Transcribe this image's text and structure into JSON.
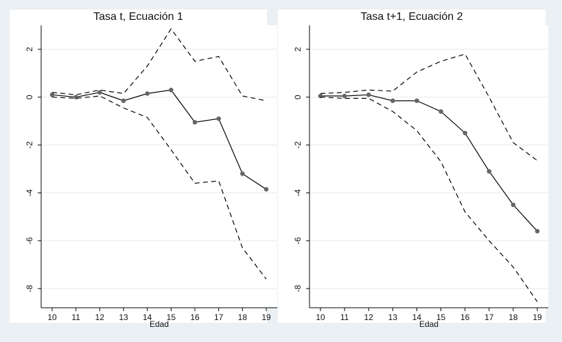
{
  "chart_data": [
    {
      "type": "line",
      "title": "Tasa t, Ecuación 1",
      "xlabel": "Edad",
      "ylabel": "",
      "x": [
        10,
        11,
        12,
        13,
        14,
        15,
        16,
        17,
        18,
        19
      ],
      "xticks": [
        "10",
        "11",
        "12",
        "13",
        "14",
        "15",
        "16",
        "17",
        "18",
        "19"
      ],
      "ylim": [
        -8.8,
        3.0
      ],
      "yticks": [
        2,
        0,
        -2,
        -4,
        -6,
        -8
      ],
      "ytick_labels": [
        "2",
        "0",
        "-2",
        "-4",
        "-6",
        "-8"
      ],
      "grid": true,
      "series": [
        {
          "style": "solid-markers",
          "color": "#000000",
          "marker_color": "#666666",
          "values": [
            0.1,
            0.0,
            0.2,
            -0.15,
            0.15,
            0.3,
            -1.05,
            -0.9,
            -3.2,
            -3.85
          ]
        },
        {
          "style": "dashed",
          "color": "#000000",
          "values": [
            0.2,
            0.1,
            0.3,
            0.15,
            1.3,
            2.85,
            1.5,
            1.7,
            0.05,
            -0.15
          ]
        },
        {
          "style": "dashed",
          "color": "#000000",
          "values": [
            0.0,
            -0.05,
            0.05,
            -0.45,
            -0.85,
            -2.2,
            -3.6,
            -3.5,
            -6.3,
            -7.6
          ]
        }
      ]
    },
    {
      "type": "line",
      "title": "Tasa t+1, Ecuación 2",
      "xlabel": "Edad",
      "ylabel": "",
      "x": [
        10,
        11,
        12,
        13,
        14,
        15,
        16,
        17,
        18,
        19
      ],
      "xticks": [
        "10",
        "11",
        "12",
        "13",
        "14",
        "15",
        "16",
        "17",
        "18",
        "19"
      ],
      "ylim": [
        -8.8,
        3.0
      ],
      "yticks": [
        2,
        0,
        -2,
        -4,
        -6,
        -8
      ],
      "ytick_labels": [
        "2",
        "0",
        "-2",
        "-4",
        "-6",
        "-8"
      ],
      "grid": true,
      "series": [
        {
          "style": "solid-markers",
          "color": "#000000",
          "marker_color": "#666666",
          "values": [
            0.05,
            0.05,
            0.1,
            -0.15,
            -0.15,
            -0.6,
            -1.5,
            -3.1,
            -4.5,
            -5.6
          ]
        },
        {
          "style": "dashed",
          "color": "#000000",
          "values": [
            0.15,
            0.2,
            0.3,
            0.25,
            1.05,
            1.5,
            1.8,
            0.0,
            -1.9,
            -2.65
          ]
        },
        {
          "style": "dashed",
          "color": "#000000",
          "values": [
            0.0,
            -0.05,
            -0.05,
            -0.6,
            -1.4,
            -2.7,
            -4.8,
            -6.0,
            -7.1,
            -8.55
          ]
        }
      ]
    }
  ],
  "colors": {
    "figure_background": "#eaf0f3",
    "plot_background": "#ffffff",
    "grid": "#e2e8eb",
    "axis": "#000000"
  }
}
